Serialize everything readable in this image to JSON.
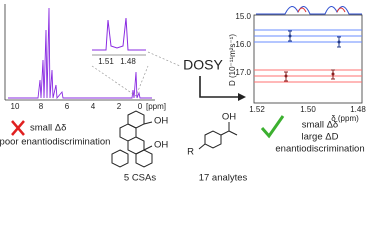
{
  "spectrum": {
    "xticks": [
      "10",
      "8",
      "6",
      "4",
      "2",
      "0"
    ],
    "unit": "[ppm]"
  },
  "inset": {
    "labels": [
      "1.51",
      "1.48"
    ]
  },
  "arrow_label": "DOSY",
  "dosy_plot": {
    "yticks": [
      "15.0",
      "16.0",
      "17.0"
    ],
    "xticks": [
      "1.52",
      "1.50",
      "1.48"
    ],
    "x_label": "δ (ppm)",
    "y_label": "D (10⁻¹¹m²s⁻¹)"
  },
  "csa": {
    "oh_top": "OH",
    "oh_bottom": "OH"
  },
  "analyte": {
    "oh": "OH",
    "r": "R"
  },
  "panels": [
    {
      "lines": [
        "small Δδ",
        "poor enantiodiscrimination"
      ]
    },
    {
      "label": "5 CSAs"
    },
    {
      "label": "17 analytes"
    },
    {
      "lines": [
        "small Δδ",
        "large ΔD",
        "enantiodiscrimination"
      ]
    }
  ]
}
